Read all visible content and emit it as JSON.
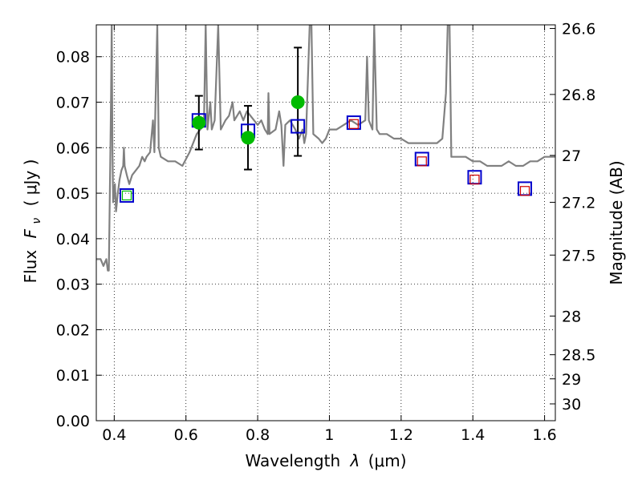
{
  "chart_data": {
    "type": "scatter",
    "xlabel": "Wavelength",
    "xlabel_symbol": "λ",
    "xlabel_unit": "(μm)",
    "ylabel": "Flux",
    "ylabel_symbol": "F",
    "ylabel_subscript": "ν",
    "ylabel_unit": "( μJy )",
    "y2label": "Magnitude (AB)",
    "xlim": [
      0.35,
      1.63
    ],
    "ylim": [
      0.0,
      0.087
    ],
    "grid": true,
    "x_ticks": [
      0.4,
      0.6,
      0.8,
      1.0,
      1.2,
      1.4,
      1.6
    ],
    "x_tick_labels": [
      "0.4",
      "0.6",
      "0.8",
      "1",
      "1.2",
      "1.4",
      "1.6"
    ],
    "y_ticks": [
      0.0,
      0.01,
      0.02,
      0.03,
      0.04,
      0.05,
      0.06,
      0.07,
      0.08
    ],
    "y_tick_labels": [
      "0.00",
      "0.01",
      "0.02",
      "0.03",
      "0.04",
      "0.05",
      "0.06",
      "0.07",
      "0.08"
    ],
    "y2_ticks": [
      {
        "label": "26.6",
        "flux": 0.0862
      },
      {
        "label": "26.8",
        "flux": 0.0717
      },
      {
        "label": "27",
        "flux": 0.0583
      },
      {
        "label": "27.2",
        "flux": 0.048
      },
      {
        "label": "27.5",
        "flux": 0.0364
      },
      {
        "label": "28",
        "flux": 0.023
      },
      {
        "label": "28.5",
        "flux": 0.0145
      },
      {
        "label": "29",
        "flux": 0.0092
      },
      {
        "label": "30",
        "flux": 0.0037
      }
    ],
    "series": [
      {
        "kind": "model-spectrum",
        "color": "#808080",
        "points": [
          [
            0.35,
            0.0355
          ],
          [
            0.362,
            0.0355
          ],
          [
            0.37,
            0.034
          ],
          [
            0.375,
            0.035
          ],
          [
            0.378,
            0.0355
          ],
          [
            0.382,
            0.033
          ],
          [
            0.385,
            0.033
          ],
          [
            0.387,
            0.045
          ],
          [
            0.389,
            0.057
          ],
          [
            0.391,
            0.07
          ],
          [
            0.393,
            0.087
          ],
          [
            0.395,
            0.06
          ],
          [
            0.397,
            0.048
          ],
          [
            0.402,
            0.052
          ],
          [
            0.405,
            0.046
          ],
          [
            0.41,
            0.05
          ],
          [
            0.415,
            0.053
          ],
          [
            0.42,
            0.055
          ],
          [
            0.425,
            0.056
          ],
          [
            0.427,
            0.06
          ],
          [
            0.429,
            0.056
          ],
          [
            0.435,
            0.054
          ],
          [
            0.442,
            0.052
          ],
          [
            0.45,
            0.054
          ],
          [
            0.46,
            0.055
          ],
          [
            0.47,
            0.056
          ],
          [
            0.478,
            0.058
          ],
          [
            0.485,
            0.057
          ],
          [
            0.49,
            0.058
          ],
          [
            0.5,
            0.059
          ],
          [
            0.508,
            0.066
          ],
          [
            0.512,
            0.059
          ],
          [
            0.52,
            0.087
          ],
          [
            0.524,
            0.06
          ],
          [
            0.53,
            0.058
          ],
          [
            0.55,
            0.057
          ],
          [
            0.57,
            0.057
          ],
          [
            0.59,
            0.056
          ],
          [
            0.61,
            0.059
          ],
          [
            0.63,
            0.063
          ],
          [
            0.65,
            0.065
          ],
          [
            0.655,
            0.087
          ],
          [
            0.66,
            0.064
          ],
          [
            0.668,
            0.07
          ],
          [
            0.672,
            0.064
          ],
          [
            0.68,
            0.066
          ],
          [
            0.69,
            0.087
          ],
          [
            0.697,
            0.064
          ],
          [
            0.71,
            0.066
          ],
          [
            0.72,
            0.067
          ],
          [
            0.73,
            0.07
          ],
          [
            0.735,
            0.066
          ],
          [
            0.75,
            0.068
          ],
          [
            0.76,
            0.066
          ],
          [
            0.77,
            0.068
          ],
          [
            0.78,
            0.067
          ],
          [
            0.79,
            0.066
          ],
          [
            0.8,
            0.065
          ],
          [
            0.81,
            0.066
          ],
          [
            0.82,
            0.064
          ],
          [
            0.828,
            0.063
          ],
          [
            0.83,
            0.072
          ],
          [
            0.833,
            0.063
          ],
          [
            0.85,
            0.064
          ],
          [
            0.86,
            0.068
          ],
          [
            0.866,
            0.065
          ],
          [
            0.872,
            0.056
          ],
          [
            0.877,
            0.065
          ],
          [
            0.89,
            0.066
          ],
          [
            0.905,
            0.064
          ],
          [
            0.915,
            0.062
          ],
          [
            0.925,
            0.064
          ],
          [
            0.93,
            0.061
          ],
          [
            0.935,
            0.063
          ],
          [
            0.945,
            0.087
          ],
          [
            0.95,
            0.087
          ],
          [
            0.955,
            0.063
          ],
          [
            0.97,
            0.062
          ],
          [
            0.98,
            0.061
          ],
          [
            0.99,
            0.062
          ],
          [
            1.0,
            0.064
          ],
          [
            1.02,
            0.064
          ],
          [
            1.04,
            0.065
          ],
          [
            1.06,
            0.066
          ],
          [
            1.08,
            0.065
          ],
          [
            1.1,
            0.066
          ],
          [
            1.105,
            0.08
          ],
          [
            1.11,
            0.066
          ],
          [
            1.12,
            0.064
          ],
          [
            1.125,
            0.087
          ],
          [
            1.132,
            0.064
          ],
          [
            1.14,
            0.063
          ],
          [
            1.16,
            0.063
          ],
          [
            1.18,
            0.062
          ],
          [
            1.2,
            0.062
          ],
          [
            1.22,
            0.061
          ],
          [
            1.24,
            0.061
          ],
          [
            1.26,
            0.061
          ],
          [
            1.28,
            0.061
          ],
          [
            1.3,
            0.061
          ],
          [
            1.315,
            0.062
          ],
          [
            1.325,
            0.072
          ],
          [
            1.33,
            0.087
          ],
          [
            1.335,
            0.087
          ],
          [
            1.34,
            0.058
          ],
          [
            1.36,
            0.058
          ],
          [
            1.38,
            0.058
          ],
          [
            1.4,
            0.057
          ],
          [
            1.42,
            0.057
          ],
          [
            1.44,
            0.056
          ],
          [
            1.46,
            0.056
          ],
          [
            1.48,
            0.056
          ],
          [
            1.5,
            0.057
          ],
          [
            1.52,
            0.056
          ],
          [
            1.54,
            0.056
          ],
          [
            1.56,
            0.057
          ],
          [
            1.58,
            0.057
          ],
          [
            1.6,
            0.058
          ],
          [
            1.615,
            0.058
          ],
          [
            1.63,
            0.058
          ]
        ]
      },
      {
        "kind": "observed",
        "marker": "circle",
        "color": "#00bb00",
        "points": [
          {
            "x": 0.435,
            "y": 0.0497
          },
          {
            "x": 0.636,
            "y": 0.0655,
            "yerr": [
              0.0059,
              0.0059
            ]
          },
          {
            "x": 0.773,
            "y": 0.0622,
            "yerr": [
              0.007,
              0.007
            ]
          },
          {
            "x": 0.912,
            "y": 0.07,
            "yerr": [
              0.0118,
              0.012
            ]
          }
        ]
      },
      {
        "kind": "model-photometry",
        "marker": "large-square",
        "color": "#0000cc",
        "points": [
          {
            "x": 0.435,
            "y": 0.0495
          },
          {
            "x": 0.636,
            "y": 0.066
          },
          {
            "x": 0.773,
            "y": 0.0637
          },
          {
            "x": 0.912,
            "y": 0.0647
          },
          {
            "x": 1.068,
            "y": 0.0655
          },
          {
            "x": 1.258,
            "y": 0.0575
          },
          {
            "x": 1.405,
            "y": 0.0535
          },
          {
            "x": 1.545,
            "y": 0.051
          }
        ]
      },
      {
        "kind": "small-square",
        "marker": "small-square",
        "color": "#cc0000",
        "points": [
          {
            "x": 1.068,
            "y": 0.0652
          },
          {
            "x": 1.258,
            "y": 0.057
          },
          {
            "x": 1.405,
            "y": 0.053
          },
          {
            "x": 1.545,
            "y": 0.0505
          }
        ]
      },
      {
        "kind": "small-square",
        "marker": "small-square",
        "color": "#00bb00",
        "points": [
          {
            "x": 0.435,
            "y": 0.0495
          }
        ]
      }
    ]
  }
}
